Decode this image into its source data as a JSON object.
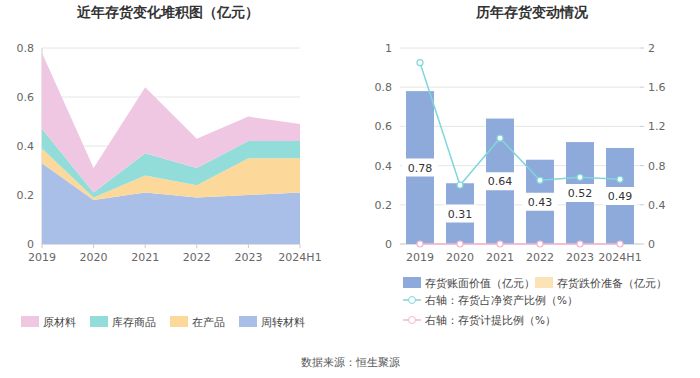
{
  "chart_data": [
    {
      "type": "area",
      "title": "近年存货变化堆积图（亿元）",
      "stacked": true,
      "grid": true,
      "legend": "bottom",
      "categories": [
        "2019",
        "2020",
        "2021",
        "2022",
        "2023",
        "2024H1"
      ],
      "ylim": [
        0,
        0.8
      ],
      "yticks": [
        0,
        0.2,
        0.4,
        0.6,
        0.8
      ],
      "series": [
        {
          "name": "周转材料",
          "color": "#a9bfe8",
          "values": [
            0.33,
            0.18,
            0.21,
            0.19,
            0.2,
            0.21
          ]
        },
        {
          "name": "在产品",
          "color": "#fcd99b",
          "values": [
            0.06,
            0.01,
            0.07,
            0.05,
            0.15,
            0.14
          ]
        },
        {
          "name": "库存商品",
          "color": "#92dcd9",
          "values": [
            0.08,
            0.02,
            0.09,
            0.07,
            0.07,
            0.07
          ]
        },
        {
          "name": "原材料",
          "color": "#efc7e2",
          "values": [
            0.31,
            0.1,
            0.27,
            0.12,
            0.1,
            0.07
          ]
        }
      ]
    },
    {
      "type": "bar",
      "title": "历年存货变动情况",
      "grid": true,
      "legend": "bottom",
      "data_labels": true,
      "categories": [
        "2019",
        "2020",
        "2021",
        "2022",
        "2023",
        "2024H1"
      ],
      "ylim": [
        0,
        1
      ],
      "yticks": [
        0,
        0.2,
        0.4,
        0.6,
        0.8,
        1
      ],
      "y2lim": [
        0,
        2
      ],
      "y2ticks": [
        0,
        0.4,
        0.8,
        1.2,
        1.6,
        2
      ],
      "series": [
        {
          "name": "存货账面价值（亿元）",
          "type": "bar",
          "color": "#8eaadb",
          "values": [
            0.78,
            0.31,
            0.64,
            0.43,
            0.52,
            0.49
          ]
        },
        {
          "name": "存货跌价准备（亿元）",
          "type": "bar",
          "color": "#fce3b6",
          "values": [
            0,
            0,
            0,
            0,
            0,
            0
          ]
        },
        {
          "name": "右轴：存货占净资产比例（%）",
          "type": "line",
          "axis": "y2",
          "marker": "circle",
          "color": "#7fd6dc",
          "values": [
            1.85,
            0.6,
            1.08,
            0.65,
            0.68,
            0.66
          ]
        },
        {
          "name": "右轴：存货计提比例（%）",
          "type": "line",
          "axis": "y2",
          "marker": "circle",
          "color": "#f4b6d0",
          "values": [
            0,
            0,
            0,
            0,
            0,
            0
          ]
        }
      ]
    }
  ],
  "source": "数据来源：恒生聚源"
}
